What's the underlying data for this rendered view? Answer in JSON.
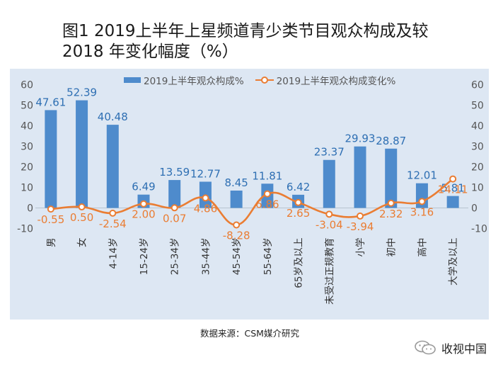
{
  "title": {
    "line1": "图1  2019上半年上星频道青少类节目观众构成及较",
    "line2": "2018  年变化幅度（%）"
  },
  "chart_data": {
    "type": "bar+line",
    "categories": [
      "男",
      "女",
      "4-14岁",
      "15-24岁",
      "25-34岁",
      "35-44岁",
      "45-54岁",
      "55-64岁",
      "65岁及以上",
      "未受过正规教育",
      "小学",
      "初中",
      "高中",
      "大学及以上"
    ],
    "series": [
      {
        "name": "2019上半年观众构成%",
        "kind": "bar",
        "color": "#4e8bcc",
        "values": [
          47.61,
          52.39,
          40.48,
          6.49,
          13.59,
          12.77,
          8.45,
          11.81,
          6.42,
          23.37,
          29.93,
          28.87,
          12.01,
          5.81
        ],
        "labels": [
          "47.61",
          "52.39",
          "40.48",
          "6.49",
          "13.59",
          "12.77",
          "8.45",
          "11.81",
          "6.42",
          "23.37",
          "29.93",
          "28.87",
          "12.01",
          "5.81"
        ]
      },
      {
        "name": "2019上半年观众构成变化%",
        "kind": "line",
        "color": "#ea7d33",
        "values": [
          -0.55,
          0.5,
          -2.54,
          2.0,
          0.07,
          4.86,
          -8.28,
          6.86,
          2.65,
          -3.04,
          -3.94,
          2.32,
          3.16,
          14.11
        ],
        "labels": [
          "-0.55",
          "0.50",
          "-2.54",
          "2.00",
          "0.07",
          "4.86",
          "-8.28",
          "6.86",
          "2.65",
          "-3.04",
          "-3.94",
          "2.32",
          "3.16",
          "14.11"
        ]
      }
    ],
    "y_left": {
      "min": -10,
      "max": 60,
      "step": 10
    },
    "y_right": {
      "min": -10,
      "max": 60,
      "step": 10
    },
    "grid": false,
    "legend": "top"
  },
  "source": "数据来源：CSM媒介研究",
  "brand": {
    "name": "收视中国",
    "icon": "wechat-icon"
  },
  "colors": {
    "bar": "#4e8bcc",
    "line": "#ea7d33",
    "panel": "#dde7f3"
  }
}
